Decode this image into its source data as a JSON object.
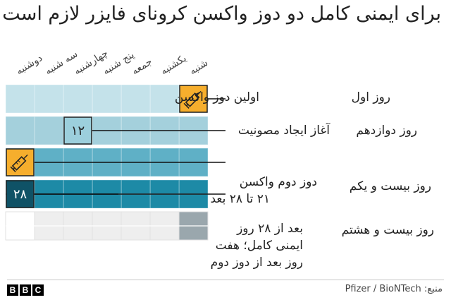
{
  "title": "برای ایمنی کامل دو دوز واکسن کرونای فایزر لازم است",
  "chart_data": {
    "type": "table",
    "columns": [
      "شنبه",
      "یکشنبه",
      "جمعه",
      "پنج شنبه",
      "چهارشنبه",
      "سه شنبه",
      "دوشنبه"
    ],
    "weeks": 5,
    "days_per_week": 7,
    "markers": [
      {
        "day": 1,
        "kind": "syringe"
      },
      {
        "day": 12,
        "kind": "number",
        "label": "۱۲"
      },
      {
        "day": 21,
        "kind": "syringe"
      },
      {
        "day": 28,
        "kind": "number",
        "label": "۲۸"
      }
    ],
    "annotations": [
      {
        "day": 1,
        "label": "روز اول",
        "text": [
          "اولین دوز واکسن"
        ]
      },
      {
        "day": 12,
        "label": "روز دوازدهم",
        "text": [
          "آغاز ایجاد مصونیت"
        ]
      },
      {
        "day": 21,
        "label": "روز  بیست و یکم",
        "text": [
          "دوز دوم واکسن",
          "۲۱ تا ۲۸ بعد"
        ]
      },
      {
        "day": 28,
        "label": "روز بیست و هشتم",
        "text": [
          "بعد از ۲۸ روز",
          "ایمنی کامل؛ هفت",
          "روز بعد از دوز دوم"
        ]
      }
    ]
  },
  "colors": {
    "week1": "#c4e2ea",
    "week2": "#a4d0dc",
    "week3": "#5fb0c6",
    "week4": "#1d8aa6",
    "week5": "#0f5266",
    "marker": "#f6ae2d",
    "numbox_light": "#9ccfdc",
    "numbox_dark": "#0f5266"
  },
  "footer": {
    "logo": "BBC",
    "source": "منبع: Pfizer / BioNTech"
  }
}
